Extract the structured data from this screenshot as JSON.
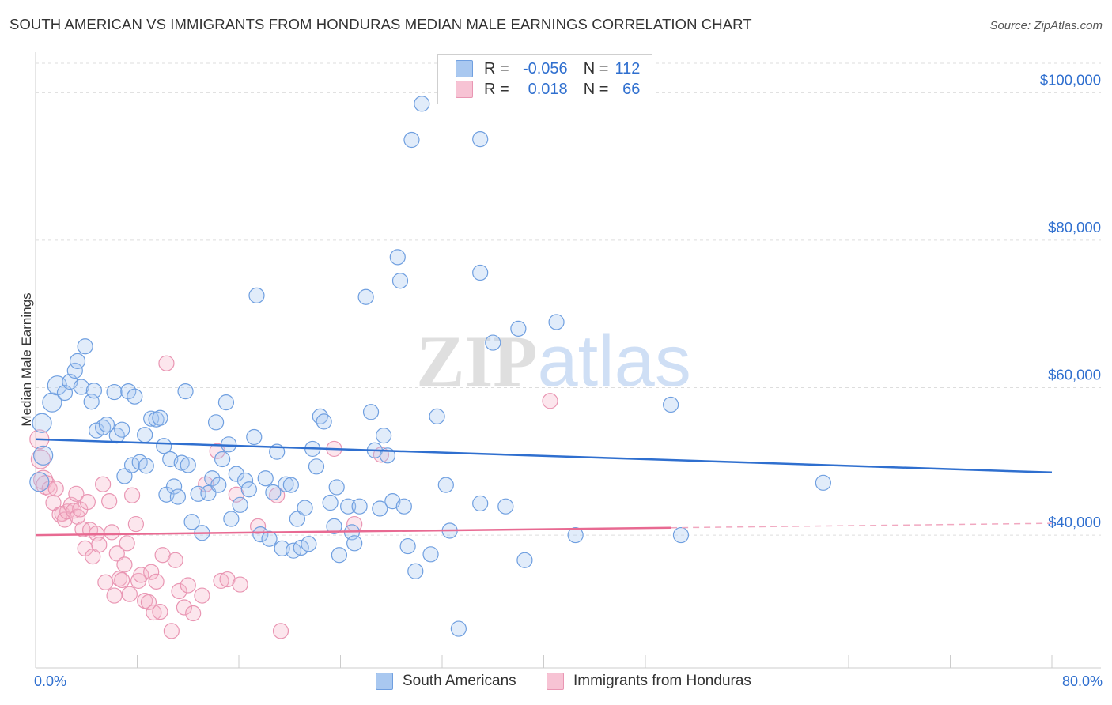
{
  "title": "SOUTH AMERICAN VS IMMIGRANTS FROM HONDURAS MEDIAN MALE EARNINGS CORRELATION CHART",
  "source": "Source: ZipAtlas.com",
  "legend": {
    "r_label": "R =",
    "n_label": "N =",
    "series1": {
      "r": "-0.056",
      "n": "112"
    },
    "series2": {
      "r": "0.018",
      "n": "66"
    }
  },
  "bottom_legend": {
    "series1": "South Americans",
    "series2": "Immigrants from Honduras"
  },
  "x_axis": {
    "min_label": "0.0%",
    "max_label": "80.0%"
  },
  "colors": {
    "blue": "#2f6fcf",
    "blue_fill": "#a9c8f0",
    "pink": "#e86a92",
    "pink_fill": "#f7b7cc"
  },
  "chart_data": {
    "type": "scatter",
    "ylabel": "Median Male Earnings",
    "xlim": [
      0,
      80
    ],
    "ylim": [
      22000,
      104000
    ],
    "y_ticks": [
      {
        "value": 40000,
        "label": "$40,000"
      },
      {
        "value": 60000,
        "label": "$60,000"
      },
      {
        "value": 80000,
        "label": "$80,000"
      },
      {
        "value": 100000,
        "label": "$100,000"
      }
    ],
    "watermark": "ZIPatlas",
    "series": [
      {
        "name": "South Americans",
        "trend": {
          "x": [
            0,
            80
          ],
          "y": [
            53000,
            48500
          ]
        },
        "points": [
          [
            0.5,
            55200
          ],
          [
            1.3,
            58000
          ],
          [
            0.6,
            50800
          ],
          [
            0.3,
            47200
          ],
          [
            1.7,
            60300
          ],
          [
            2.3,
            59300
          ],
          [
            2.7,
            60800
          ],
          [
            3.1,
            62300
          ],
          [
            3.3,
            63600
          ],
          [
            3.9,
            65600
          ],
          [
            3.6,
            60100
          ],
          [
            4.4,
            58100
          ],
          [
            4.6,
            59600
          ],
          [
            4.8,
            54200
          ],
          [
            5.3,
            54600
          ],
          [
            5.6,
            55000
          ],
          [
            6.2,
            59400
          ],
          [
            6.4,
            53500
          ],
          [
            6.8,
            54300
          ],
          [
            7.3,
            59500
          ],
          [
            7.8,
            58800
          ],
          [
            7.0,
            48000
          ],
          [
            7.6,
            49500
          ],
          [
            8.2,
            49900
          ],
          [
            8.7,
            49400
          ],
          [
            8.6,
            53600
          ],
          [
            9.1,
            55800
          ],
          [
            9.5,
            55700
          ],
          [
            9.8,
            55900
          ],
          [
            10.1,
            52100
          ],
          [
            10.3,
            45500
          ],
          [
            10.6,
            50300
          ],
          [
            10.9,
            46600
          ],
          [
            11.2,
            45200
          ],
          [
            11.5,
            49800
          ],
          [
            12.0,
            49500
          ],
          [
            11.8,
            59500
          ],
          [
            12.3,
            41800
          ],
          [
            12.8,
            45600
          ],
          [
            13.1,
            40300
          ],
          [
            13.6,
            45700
          ],
          [
            13.9,
            47700
          ],
          [
            14.2,
            55300
          ],
          [
            14.4,
            46800
          ],
          [
            14.7,
            50300
          ],
          [
            15.2,
            52300
          ],
          [
            15.4,
            42200
          ],
          [
            15.8,
            48300
          ],
          [
            16.1,
            44100
          ],
          [
            16.5,
            47400
          ],
          [
            16.8,
            46200
          ],
          [
            17.2,
            53300
          ],
          [
            17.4,
            72500
          ],
          [
            17.7,
            40100
          ],
          [
            18.1,
            47700
          ],
          [
            18.4,
            39500
          ],
          [
            18.7,
            45800
          ],
          [
            19.0,
            51300
          ],
          [
            19.4,
            38200
          ],
          [
            19.7,
            46900
          ],
          [
            20.1,
            46800
          ],
          [
            20.3,
            37900
          ],
          [
            20.6,
            42200
          ],
          [
            20.9,
            38300
          ],
          [
            21.2,
            43700
          ],
          [
            21.5,
            38800
          ],
          [
            21.8,
            51700
          ],
          [
            22.1,
            49300
          ],
          [
            22.4,
            56100
          ],
          [
            22.7,
            55400
          ],
          [
            23.2,
            44400
          ],
          [
            23.5,
            41200
          ],
          [
            23.7,
            46500
          ],
          [
            23.9,
            37300
          ],
          [
            24.6,
            43900
          ],
          [
            24.9,
            40400
          ],
          [
            25.1,
            38900
          ],
          [
            25.5,
            43900
          ],
          [
            26.0,
            72300
          ],
          [
            26.4,
            56700
          ],
          [
            26.7,
            51500
          ],
          [
            27.1,
            43600
          ],
          [
            27.4,
            53500
          ],
          [
            27.7,
            50800
          ],
          [
            28.1,
            44600
          ],
          [
            28.5,
            77700
          ],
          [
            28.7,
            74500
          ],
          [
            29.0,
            43900
          ],
          [
            29.3,
            38500
          ],
          [
            29.6,
            93600
          ],
          [
            29.9,
            35100
          ],
          [
            30.4,
            98500
          ],
          [
            31.1,
            37400
          ],
          [
            31.6,
            56100
          ],
          [
            32.3,
            46800
          ],
          [
            32.6,
            40600
          ],
          [
            33.3,
            27300
          ],
          [
            35.0,
            93700
          ],
          [
            35.0,
            75600
          ],
          [
            36.0,
            66100
          ],
          [
            37.0,
            43900
          ],
          [
            38.0,
            68000
          ],
          [
            38.5,
            36600
          ],
          [
            41.0,
            68900
          ],
          [
            42.5,
            40000
          ],
          [
            50.0,
            57700
          ],
          [
            50.8,
            40000
          ],
          [
            62.0,
            47100
          ],
          [
            35.0,
            44300
          ],
          [
            15.0,
            58000
          ]
        ]
      },
      {
        "name": "Immigrants from Honduras",
        "trend": {
          "x": [
            0,
            50
          ],
          "y": [
            40000,
            41000
          ],
          "dashed_to": [
            80,
            41600
          ]
        },
        "points": [
          [
            0.3,
            53000
          ],
          [
            0.4,
            50300
          ],
          [
            0.6,
            47500
          ],
          [
            0.8,
            46800
          ],
          [
            1.1,
            46300
          ],
          [
            1.4,
            44400
          ],
          [
            1.6,
            46300
          ],
          [
            1.9,
            42800
          ],
          [
            2.1,
            42900
          ],
          [
            2.3,
            42100
          ],
          [
            2.5,
            43200
          ],
          [
            2.8,
            44100
          ],
          [
            3.0,
            43300
          ],
          [
            3.2,
            45600
          ],
          [
            3.3,
            42500
          ],
          [
            3.5,
            43500
          ],
          [
            3.7,
            40800
          ],
          [
            3.9,
            38200
          ],
          [
            4.1,
            44500
          ],
          [
            4.3,
            40700
          ],
          [
            4.5,
            37100
          ],
          [
            4.8,
            40200
          ],
          [
            5.0,
            38700
          ],
          [
            5.3,
            46900
          ],
          [
            5.5,
            33600
          ],
          [
            5.8,
            44600
          ],
          [
            6.0,
            40400
          ],
          [
            6.2,
            31800
          ],
          [
            6.4,
            37500
          ],
          [
            6.6,
            34100
          ],
          [
            6.8,
            33900
          ],
          [
            7.0,
            36000
          ],
          [
            7.2,
            38900
          ],
          [
            7.4,
            32000
          ],
          [
            7.6,
            45400
          ],
          [
            7.9,
            41500
          ],
          [
            8.1,
            33800
          ],
          [
            8.3,
            34600
          ],
          [
            8.6,
            31100
          ],
          [
            8.9,
            30900
          ],
          [
            9.1,
            35000
          ],
          [
            9.3,
            29500
          ],
          [
            9.5,
            33700
          ],
          [
            9.8,
            29600
          ],
          [
            10.0,
            37300
          ],
          [
            10.3,
            63300
          ],
          [
            10.7,
            27000
          ],
          [
            11.0,
            36600
          ],
          [
            11.3,
            32400
          ],
          [
            11.7,
            30200
          ],
          [
            12.0,
            33200
          ],
          [
            12.4,
            29400
          ],
          [
            13.1,
            31800
          ],
          [
            13.4,
            46900
          ],
          [
            14.3,
            51400
          ],
          [
            14.6,
            33800
          ],
          [
            15.1,
            34000
          ],
          [
            15.8,
            45500
          ],
          [
            16.1,
            33300
          ],
          [
            17.5,
            41200
          ],
          [
            19.3,
            27000
          ],
          [
            23.5,
            51700
          ],
          [
            25.1,
            41500
          ],
          [
            27.2,
            50900
          ],
          [
            40.5,
            58200
          ],
          [
            19.0,
            45400
          ]
        ]
      }
    ]
  }
}
